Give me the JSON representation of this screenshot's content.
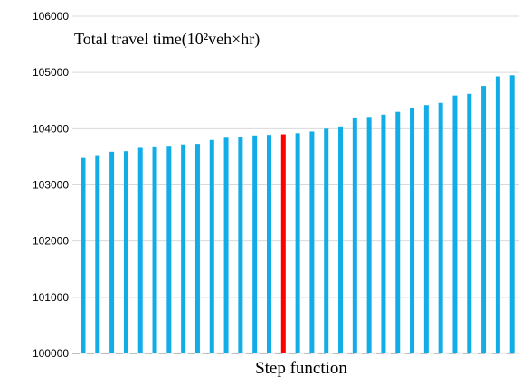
{
  "chart_data": {
    "type": "bar",
    "title": "Total travel time(10²veh×hr)",
    "xlabel": "Step function",
    "ylabel": "",
    "ylim": [
      100000,
      106000
    ],
    "yticks": [
      100000,
      101000,
      102000,
      103000,
      104000,
      105000,
      106000
    ],
    "ytick_labels": [
      "100000",
      "101000",
      "102000",
      "103000",
      "104000",
      "105000",
      "106000"
    ],
    "grid": "horizontal",
    "values": [
      103480,
      103530,
      103590,
      103600,
      103660,
      103670,
      103680,
      103720,
      103730,
      103800,
      103840,
      103850,
      103880,
      103890,
      103900,
      103920,
      103950,
      104000,
      104040,
      104200,
      104210,
      104250,
      104300,
      104370,
      104420,
      104460,
      104590,
      104620,
      104760,
      104930,
      104950
    ],
    "highlight_index": 14,
    "colors": {
      "bar": "#12ACE7",
      "highlight": "#FF0000",
      "grid": "#D9D9D9",
      "axis": "#808080"
    }
  }
}
